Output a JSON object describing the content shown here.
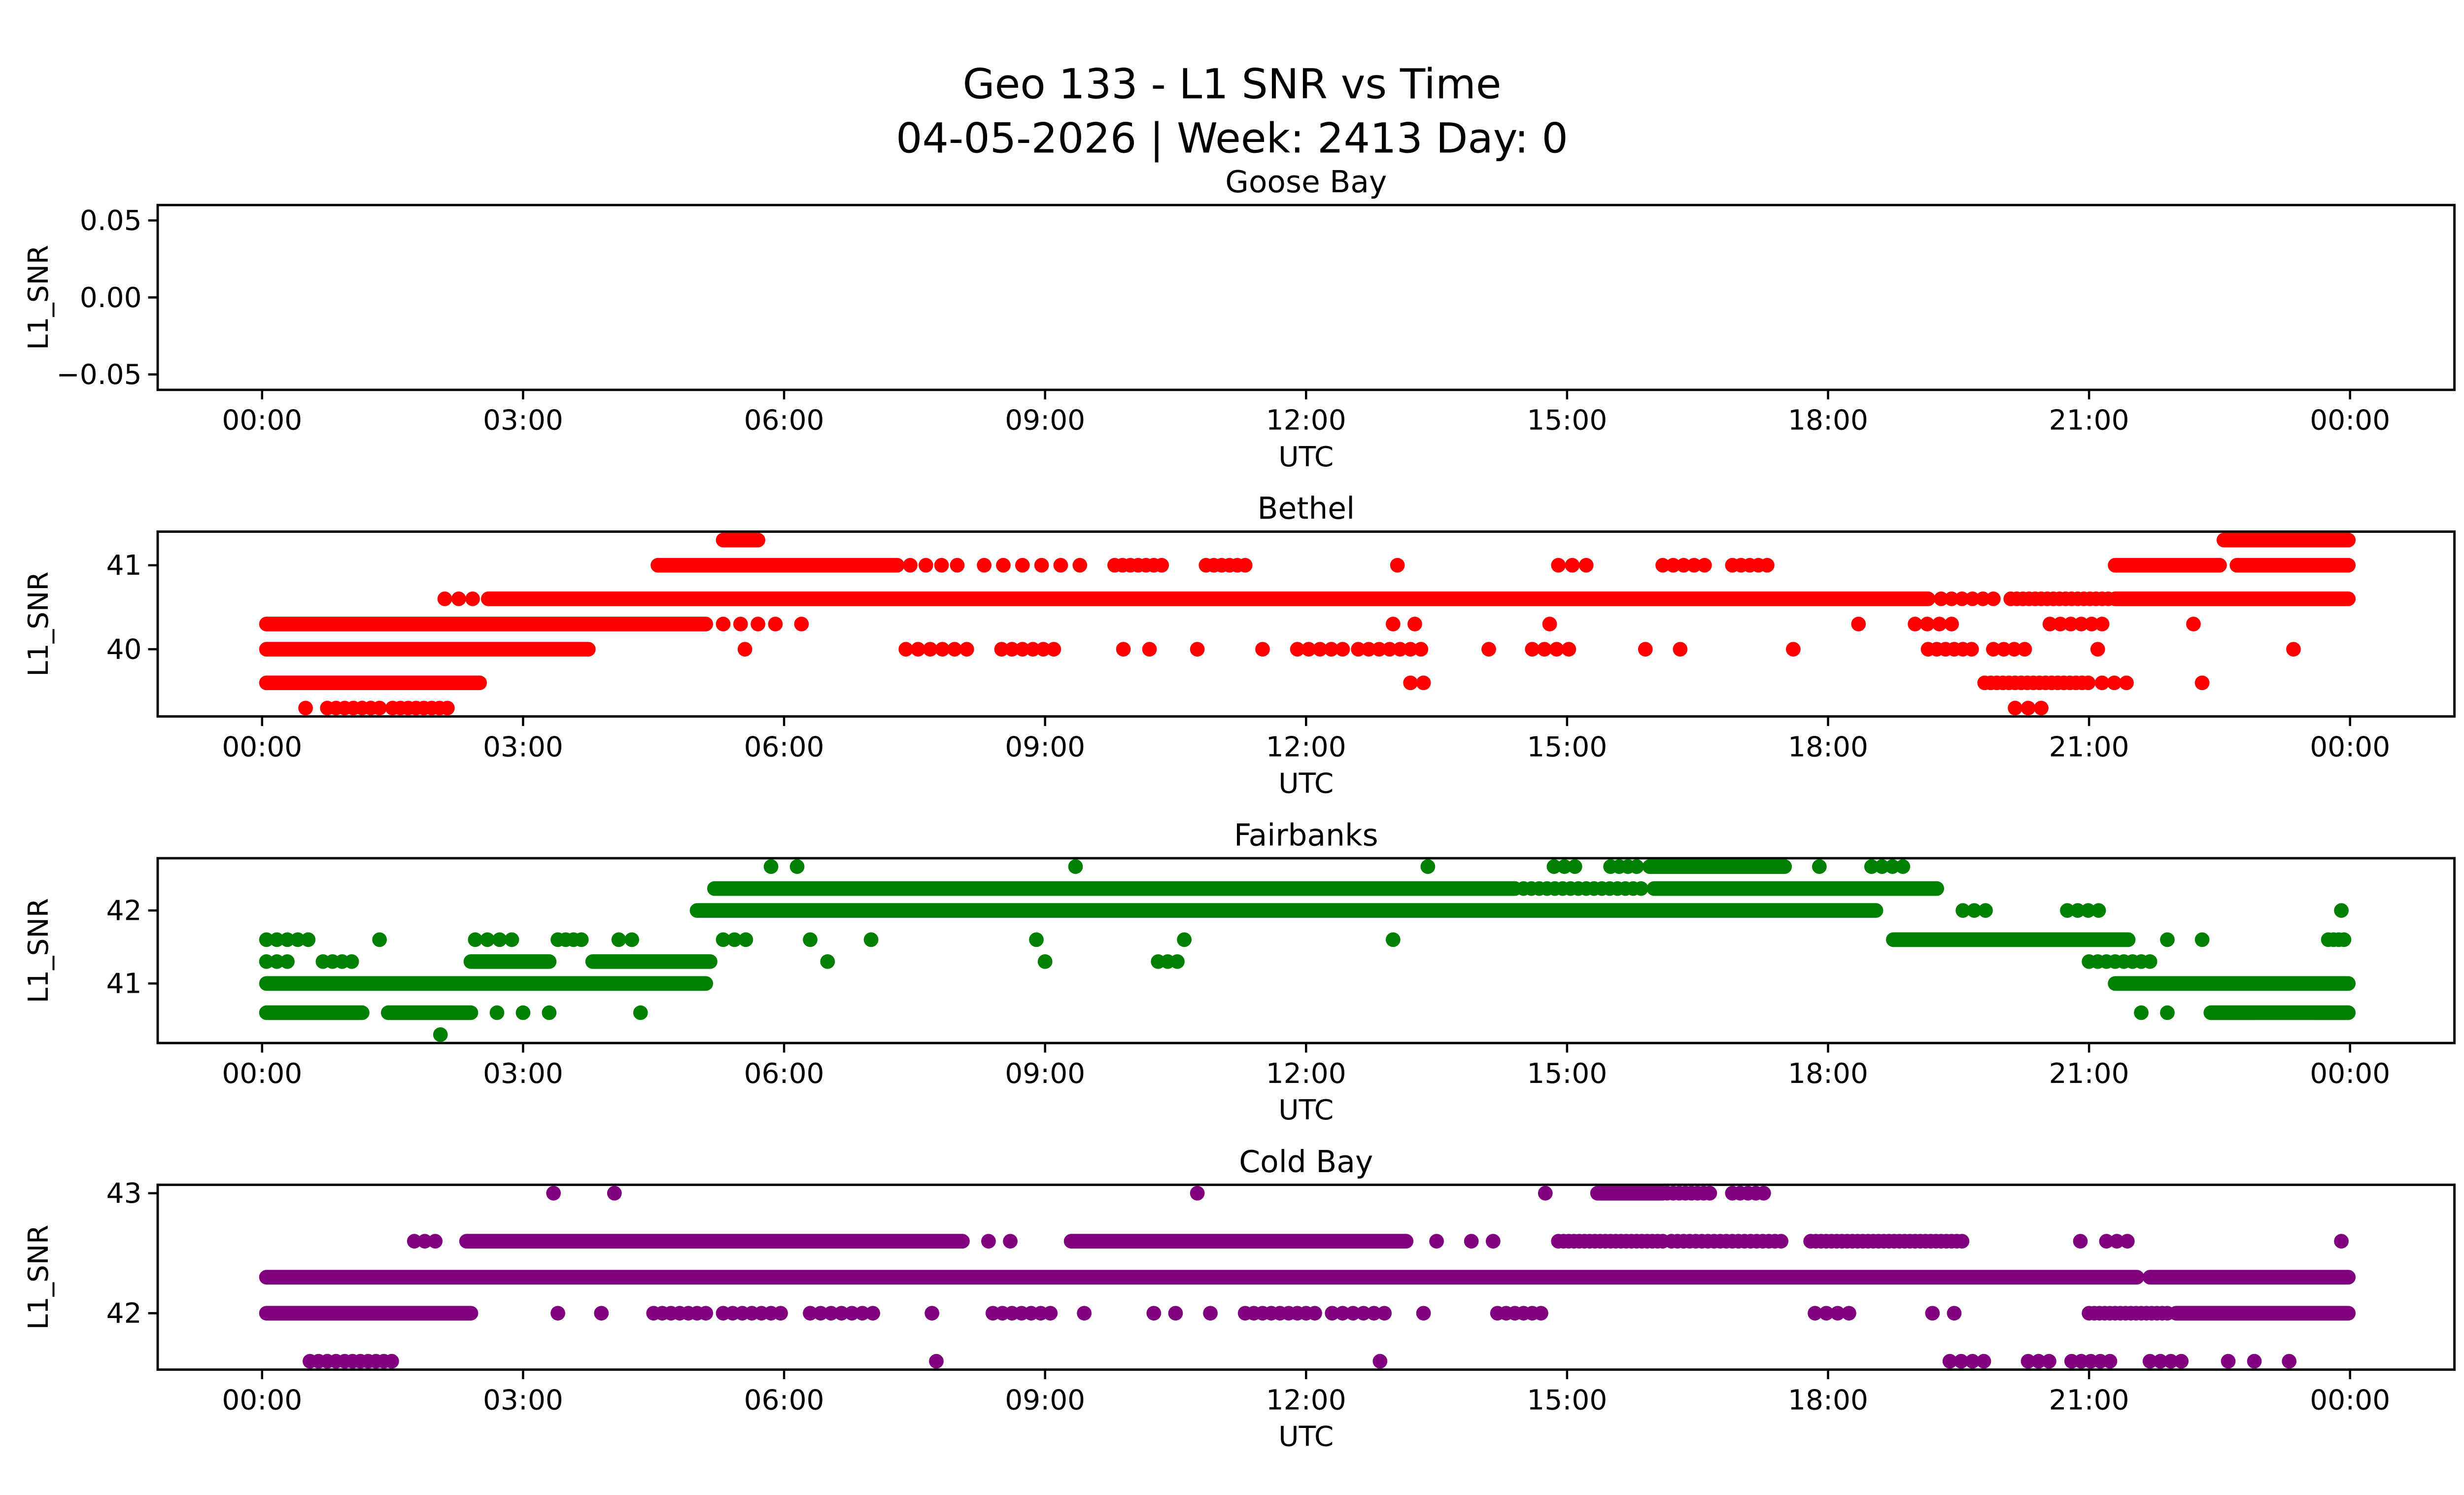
{
  "figure": {
    "title_line1": "Geo 133 - L1 SNR vs Time",
    "title_line2": "04-05-2026 | Week: 2413 Day: 0"
  },
  "axes": {
    "xlabel": "UTC",
    "ylabel": "L1_SNR",
    "xticks": {
      "hours": [
        0,
        3,
        6,
        9,
        12,
        15,
        18,
        21,
        24
      ],
      "labels": [
        "00:00",
        "03:00",
        "06:00",
        "09:00",
        "12:00",
        "15:00",
        "18:00",
        "21:00",
        "00:00"
      ]
    },
    "xlim_hours": [
      -1.2,
      25.2
    ]
  },
  "chart_data": [
    {
      "type": "scatter",
      "title": "Goose Bay",
      "xlabel": "UTC",
      "ylabel": "L1_SNR",
      "color": "",
      "ylim": [
        -0.06,
        0.06
      ],
      "yticks": [
        -0.05,
        0.0,
        0.05
      ],
      "ytick_labels": [
        "−0.05",
        "0.00",
        "0.05"
      ],
      "bands": []
    },
    {
      "type": "scatter",
      "title": "Bethel",
      "xlabel": "UTC",
      "ylabel": "L1_SNR",
      "color": "#ff0000",
      "ylim": [
        39.2,
        41.4
      ],
      "yticks": [
        40,
        41
      ],
      "ytick_labels": [
        "40",
        "41"
      ],
      "bands": [
        {
          "snr": 41.3,
          "segments": [
            [
              5.3,
              5.7,
              0.04
            ],
            [
              22.55,
              23.98,
              0.04
            ]
          ],
          "points": []
        },
        {
          "snr": 41.0,
          "segments": [
            [
              4.55,
              7.3,
              0.04
            ],
            [
              7.45,
              8.05,
              0.18
            ],
            [
              8.3,
              9.6,
              0.22
            ],
            [
              9.8,
              10.35,
              0.09
            ],
            [
              10.85,
              11.3,
              0.09
            ],
            [
              14.9,
              15.3,
              0.16
            ],
            [
              16.1,
              16.6,
              0.12
            ],
            [
              16.9,
              17.35,
              0.1
            ],
            [
              21.3,
              22.5,
              0.05
            ],
            [
              22.7,
              23.98,
              0.05
            ]
          ],
          "points": [
            13.05
          ]
        },
        {
          "snr": 40.6,
          "segments": [
            [
              2.1,
              2.55,
              0.16
            ],
            [
              2.6,
              19.15,
              0.04
            ],
            [
              19.3,
              19.9,
              0.12
            ],
            [
              20.1,
              21.25,
              0.07
            ],
            [
              21.3,
              23.98,
              0.04
            ]
          ],
          "points": []
        },
        {
          "snr": 40.3,
          "segments": [
            [
              0.05,
              5.1,
              0.04
            ],
            [
              5.3,
              5.9,
              0.2
            ],
            [
              19.0,
              19.55,
              0.14
            ],
            [
              20.55,
              21.2,
              0.12
            ]
          ],
          "points": [
            6.2,
            13.0,
            13.25,
            14.8,
            18.35,
            22.2
          ]
        },
        {
          "snr": 40.0,
          "segments": [
            [
              0.05,
              3.75,
              0.04
            ],
            [
              7.4,
              8.15,
              0.14
            ],
            [
              8.5,
              9.2,
              0.12
            ],
            [
              11.9,
              12.45,
              0.13
            ],
            [
              12.6,
              13.35,
              0.12
            ],
            [
              14.6,
              15.1,
              0.14
            ],
            [
              19.15,
              19.7,
              0.1
            ],
            [
              19.9,
              20.35,
              0.12
            ]
          ],
          "points": [
            5.55,
            9.9,
            10.2,
            10.75,
            11.5,
            14.1,
            15.9,
            16.3,
            17.6,
            21.1,
            23.35
          ]
        },
        {
          "snr": 39.6,
          "segments": [
            [
              0.05,
              2.5,
              0.05
            ],
            [
              19.8,
              21.05,
              0.07
            ],
            [
              21.15,
              21.5,
              0.14
            ]
          ],
          "points": [
            13.2,
            13.35,
            22.3
          ]
        },
        {
          "snr": 39.3,
          "segments": [
            [
              0.75,
              1.35,
              0.1
            ],
            [
              1.5,
              2.2,
              0.09
            ],
            [
              20.15,
              20.5,
              0.15
            ]
          ],
          "points": [
            0.5
          ]
        }
      ]
    },
    {
      "type": "scatter",
      "title": "Fairbanks",
      "xlabel": "UTC",
      "ylabel": "L1_SNR",
      "color": "#008000",
      "ylim": [
        40.185,
        42.715
      ],
      "yticks": [
        41,
        42
      ],
      "ytick_labels": [
        "41",
        "42"
      ],
      "bands": [
        {
          "snr": 42.6,
          "segments": [
            [
              14.85,
              15.2,
              0.12
            ],
            [
              15.5,
              15.8,
              0.1
            ],
            [
              15.95,
              17.5,
              0.05
            ],
            [
              18.5,
              18.95,
              0.12
            ]
          ],
          "points": [
            5.85,
            6.15,
            9.35,
            13.4,
            17.9
          ]
        },
        {
          "snr": 42.3,
          "segments": [
            [
              5.2,
              14.4,
              0.04
            ],
            [
              14.5,
              15.9,
              0.09
            ],
            [
              16.0,
              19.25,
              0.04
            ]
          ],
          "points": []
        },
        {
          "snr": 42.0,
          "segments": [
            [
              5.0,
              18.55,
              0.04
            ],
            [
              19.55,
              19.85,
              0.13
            ],
            [
              20.75,
              21.15,
              0.12
            ]
          ],
          "points": [
            23.9
          ]
        },
        {
          "snr": 41.6,
          "segments": [
            [
              0.05,
              0.55,
              0.12
            ],
            [
              2.45,
              2.95,
              0.14
            ],
            [
              3.4,
              3.75,
              0.09
            ],
            [
              5.3,
              5.6,
              0.13
            ],
            [
              18.75,
              21.45,
              0.04
            ],
            [
              23.75,
              23.98,
              0.06
            ]
          ],
          "points": [
            1.35,
            4.1,
            4.25,
            6.3,
            7.0,
            8.9,
            10.6,
            13.0,
            21.9,
            22.3
          ]
        },
        {
          "snr": 41.3,
          "segments": [
            [
              0.05,
              0.35,
              0.12
            ],
            [
              0.7,
              1.1,
              0.11
            ],
            [
              2.4,
              3.3,
              0.05
            ],
            [
              3.8,
              5.15,
              0.04
            ],
            [
              10.3,
              10.55,
              0.11
            ],
            [
              21.0,
              21.7,
              0.1
            ]
          ],
          "points": [
            6.5,
            9.0
          ]
        },
        {
          "snr": 41.0,
          "segments": [
            [
              0.05,
              5.1,
              0.04
            ],
            [
              21.3,
              23.98,
              0.04
            ]
          ],
          "points": []
        },
        {
          "snr": 40.6,
          "segments": [
            [
              0.05,
              1.15,
              0.05
            ],
            [
              1.45,
              2.4,
              0.05
            ],
            [
              22.4,
              23.98,
              0.05
            ]
          ],
          "points": [
            2.7,
            3.0,
            3.3,
            4.35,
            21.6,
            21.9
          ]
        },
        {
          "snr": 40.3,
          "segments": [],
          "points": [
            2.05
          ]
        }
      ]
    },
    {
      "type": "scatter",
      "title": "Cold Bay",
      "xlabel": "UTC",
      "ylabel": "L1_SNR",
      "color": "#800080",
      "ylim": [
        41.53,
        43.07
      ],
      "yticks": [
        42,
        43
      ],
      "ytick_labels": [
        "42",
        "43"
      ],
      "bands": [
        {
          "snr": 43.0,
          "segments": [
            [
              15.35,
              16.1,
              0.05
            ],
            [
              16.15,
              16.65,
              0.07
            ],
            [
              16.9,
              17.3,
              0.09
            ]
          ],
          "points": [
            3.35,
            4.05,
            10.75,
            14.75
          ]
        },
        {
          "snr": 42.6,
          "segments": [
            [
              1.75,
              2.1,
              0.12
            ],
            [
              2.35,
              8.05,
              0.05
            ],
            [
              9.3,
              13.15,
              0.05
            ],
            [
              14.9,
              16.1,
              0.06
            ],
            [
              16.2,
              17.5,
              0.07
            ],
            [
              17.8,
              19.55,
              0.06
            ],
            [
              21.2,
              21.55,
              0.12
            ]
          ],
          "points": [
            8.35,
            8.6,
            13.5,
            13.9,
            14.15,
            20.9,
            23.9
          ]
        },
        {
          "snr": 42.3,
          "segments": [
            [
              0.05,
              21.55,
              0.04
            ],
            [
              21.7,
              23.98,
              0.04
            ]
          ],
          "points": []
        },
        {
          "snr": 42.0,
          "segments": [
            [
              0.05,
              2.4,
              0.04
            ],
            [
              4.5,
              5.15,
              0.1
            ],
            [
              5.3,
              6.05,
              0.11
            ],
            [
              6.3,
              7.1,
              0.12
            ],
            [
              8.4,
              9.1,
              0.11
            ],
            [
              11.3,
              12.1,
              0.1
            ],
            [
              12.3,
              13.0,
              0.12
            ],
            [
              14.2,
              14.75,
              0.1
            ],
            [
              17.85,
              18.3,
              0.13
            ],
            [
              21.0,
              21.9,
              0.06
            ],
            [
              22.0,
              23.98,
              0.05
            ]
          ],
          "points": [
            3.4,
            3.9,
            7.7,
            9.45,
            10.25,
            10.5,
            10.9,
            13.35,
            19.2,
            19.45
          ]
        },
        {
          "snr": 41.6,
          "segments": [
            [
              0.55,
              0.85,
              0.1
            ],
            [
              0.95,
              1.5,
              0.09
            ],
            [
              19.4,
              19.9,
              0.13
            ],
            [
              20.3,
              20.65,
              0.12
            ],
            [
              20.8,
              21.3,
              0.11
            ],
            [
              21.7,
              22.1,
              0.12
            ]
          ],
          "points": [
            7.75,
            12.85,
            22.6,
            22.9,
            23.3
          ]
        }
      ]
    }
  ]
}
